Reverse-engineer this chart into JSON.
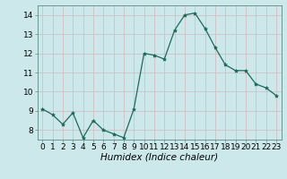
{
  "x": [
    0,
    1,
    2,
    3,
    4,
    5,
    6,
    7,
    8,
    9,
    10,
    11,
    12,
    13,
    14,
    15,
    16,
    17,
    18,
    19,
    20,
    21,
    22,
    23
  ],
  "y": [
    9.1,
    8.8,
    8.3,
    8.9,
    7.6,
    8.5,
    8.0,
    7.8,
    7.6,
    9.1,
    12.0,
    11.9,
    11.7,
    13.2,
    14.0,
    14.1,
    13.3,
    12.3,
    11.4,
    11.1,
    11.1,
    10.4,
    10.2,
    9.8
  ],
  "line_color": "#1a6b5a",
  "marker": "*",
  "marker_size": 3,
  "bg_color": "#cce8ea",
  "grid_color": "#b8d8da",
  "xlabel": "Humidex (Indice chaleur)",
  "xlabel_style": "italic",
  "ylim": [
    7.5,
    14.5
  ],
  "xlim": [
    -0.5,
    23.5
  ],
  "yticks": [
    8,
    9,
    10,
    11,
    12,
    13,
    14
  ],
  "xticks": [
    0,
    1,
    2,
    3,
    4,
    5,
    6,
    7,
    8,
    9,
    10,
    11,
    12,
    13,
    14,
    15,
    16,
    17,
    18,
    19,
    20,
    21,
    22,
    23
  ],
  "tick_fontsize": 6.5,
  "label_fontsize": 7.5
}
